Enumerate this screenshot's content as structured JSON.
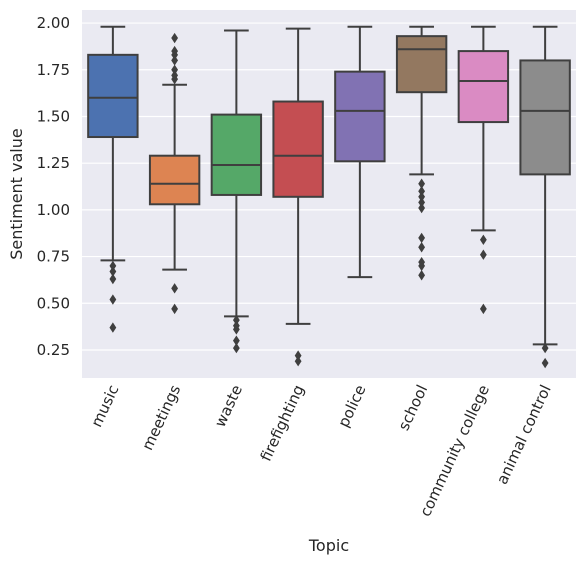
{
  "chart_data": {
    "type": "box",
    "title": "",
    "xlabel": "Topic",
    "ylabel": "Sentiment value",
    "ylim": [
      0.1,
      2.07
    ],
    "yticks": [
      0.25,
      0.5,
      0.75,
      1.0,
      1.25,
      1.5,
      1.75,
      2.0
    ],
    "ytick_labels": [
      "0.25",
      "0.50",
      "0.75",
      "1.00",
      "1.25",
      "1.50",
      "1.75",
      "2.00"
    ],
    "grid": true,
    "background": "#eaeaf2",
    "categories": [
      "music",
      "meetings",
      "waste",
      "firefighting",
      "police",
      "school",
      "community college",
      "animal control"
    ],
    "boxes": [
      {
        "category": "music",
        "color": "#4c72b0",
        "whisker_low": 0.73,
        "q1": 1.39,
        "median": 1.6,
        "q3": 1.83,
        "whisker_high": 1.98,
        "outliers": [
          0.37,
          0.52,
          0.63,
          0.67,
          0.7
        ]
      },
      {
        "category": "meetings",
        "color": "#dd8452",
        "whisker_low": 0.68,
        "q1": 1.03,
        "median": 1.14,
        "q3": 1.29,
        "whisker_high": 1.67,
        "outliers": [
          0.47,
          0.58,
          1.7,
          1.72,
          1.75,
          1.8,
          1.83,
          1.85,
          1.92
        ]
      },
      {
        "category": "waste",
        "color": "#55a868",
        "whisker_low": 0.43,
        "q1": 1.08,
        "median": 1.24,
        "q3": 1.51,
        "whisker_high": 1.96,
        "outliers": [
          0.26,
          0.3,
          0.36,
          0.38,
          0.41
        ]
      },
      {
        "category": "firefighting",
        "color": "#c44e52",
        "whisker_low": 0.39,
        "q1": 1.07,
        "median": 1.29,
        "q3": 1.58,
        "whisker_high": 1.97,
        "outliers": [
          0.19,
          0.22
        ]
      },
      {
        "category": "police",
        "color": "#8172b3",
        "whisker_low": 0.64,
        "q1": 1.26,
        "median": 1.53,
        "q3": 1.74,
        "whisker_high": 1.98,
        "outliers": []
      },
      {
        "category": "school",
        "color": "#937860",
        "whisker_low": 1.19,
        "q1": 1.63,
        "median": 1.86,
        "q3": 1.93,
        "whisker_high": 1.98,
        "outliers": [
          0.65,
          0.7,
          0.72,
          0.8,
          0.85,
          1.01,
          1.04,
          1.07,
          1.1,
          1.14
        ]
      },
      {
        "category": "community college",
        "color": "#da8bc3",
        "whisker_low": 0.89,
        "q1": 1.47,
        "median": 1.69,
        "q3": 1.85,
        "whisker_high": 1.98,
        "outliers": [
          0.47,
          0.76,
          0.84
        ]
      },
      {
        "category": "animal control",
        "color": "#8c8c8c",
        "whisker_low": 0.28,
        "q1": 1.19,
        "median": 1.53,
        "q3": 1.8,
        "whisker_high": 1.98,
        "outliers": [
          0.18,
          0.26
        ]
      }
    ]
  }
}
